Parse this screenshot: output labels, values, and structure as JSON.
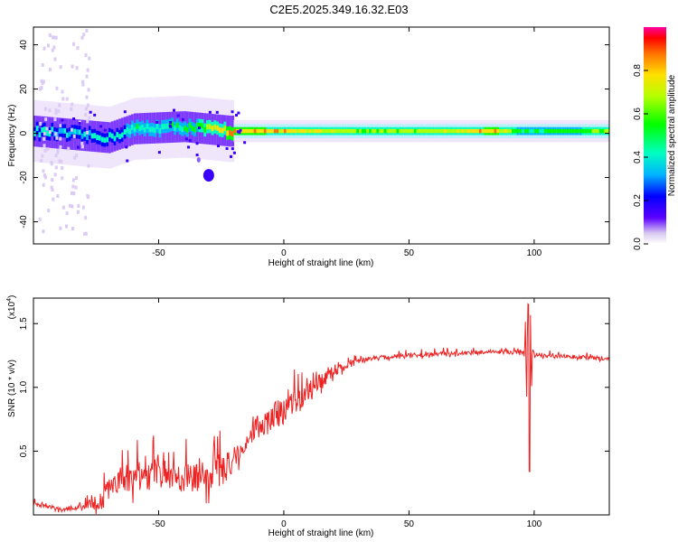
{
  "title": "C2E5.2025.349.16.32.E03",
  "colors": {
    "signal": "#ee2222",
    "frame": "#000000"
  },
  "chart_data": [
    {
      "type": "heatmap",
      "xlabel": "Height of straight line (km)",
      "ylabel": "Frequency (Hz)",
      "xlim": [
        -100,
        130
      ],
      "ylim": [
        -50,
        48
      ],
      "xticks": [
        -50,
        0,
        50,
        100
      ],
      "xtick_labels": [
        "-50",
        "0",
        "50",
        "100"
      ],
      "yticks": [
        -40,
        -20,
        0,
        20,
        40
      ],
      "ytick_labels": [
        "-40",
        "-20",
        "0",
        "20",
        "40"
      ],
      "colorbar": {
        "label": "Normalized spectral amplitude",
        "range": [
          0.0,
          1.0
        ],
        "ticks": [
          0.0,
          0.2,
          0.4,
          0.6,
          0.8
        ],
        "tick_labels": [
          "0.0",
          "0.2",
          "0.4",
          "0.6",
          "0.8"
        ]
      },
      "band_center_hz": [
        [
          -100,
          1
        ],
        [
          -80,
          -1
        ],
        [
          -70,
          -2
        ],
        [
          -60,
          2
        ],
        [
          -40,
          3
        ],
        [
          -22,
          1
        ],
        [
          0,
          1
        ],
        [
          10,
          1
        ],
        [
          30,
          1
        ],
        [
          60,
          1
        ],
        [
          90,
          1
        ],
        [
          130,
          1
        ]
      ],
      "band_amplitude": [
        [
          -100,
          0.5
        ],
        [
          -80,
          0.45
        ],
        [
          -60,
          0.55
        ],
        [
          -40,
          0.6
        ],
        [
          -22,
          0.95
        ],
        [
          0,
          0.9
        ],
        [
          30,
          0.75
        ],
        [
          60,
          0.8
        ],
        [
          85,
          0.95
        ],
        [
          95,
          0.6
        ],
        [
          130,
          0.75
        ]
      ]
    },
    {
      "type": "line",
      "xlabel": "Height of straight line (km)",
      "ylabel": "SNR (10 * v/v)",
      "y_scale_label": "(x10",
      "y_scale_exp": "4",
      "xlim": [
        -100,
        130
      ],
      "ylim": [
        0,
        17000
      ],
      "xticks": [
        -50,
        0,
        50,
        100
      ],
      "xtick_labels": [
        "-50",
        "0",
        "50",
        "100"
      ],
      "yticks": [
        5000,
        10000,
        15000
      ],
      "ytick_labels": [
        "0.5",
        "1.0",
        "1.5"
      ],
      "series": [
        {
          "name": "SNR",
          "envelope": [
            [
              -100,
              800
            ],
            [
              -95,
              700
            ],
            [
              -90,
              300
            ],
            [
              -85,
              300
            ],
            [
              -80,
              600
            ],
            [
              -72,
              800
            ],
            [
              -70,
              2200
            ],
            [
              -60,
              2500
            ],
            [
              -50,
              2800
            ],
            [
              -40,
              2500
            ],
            [
              -30,
              2500
            ],
            [
              -25,
              2800
            ],
            [
              -20,
              4000
            ],
            [
              -15,
              5500
            ],
            [
              -10,
              6500
            ],
            [
              -5,
              7200
            ],
            [
              0,
              7800
            ],
            [
              5,
              8400
            ],
            [
              10,
              9200
            ],
            [
              15,
              10200
            ],
            [
              20,
              11000
            ],
            [
              25,
              11600
            ],
            [
              30,
              12000
            ],
            [
              40,
              12300
            ],
            [
              50,
              12400
            ],
            [
              60,
              12500
            ],
            [
              70,
              12600
            ],
            [
              80,
              12700
            ],
            [
              90,
              12700
            ],
            [
              100,
              12500
            ],
            [
              110,
              12400
            ],
            [
              120,
              12300
            ],
            [
              130,
              12200
            ]
          ],
          "noise": [
            [
              -100,
              400
            ],
            [
              -80,
              400
            ],
            [
              -72,
              1500
            ],
            [
              -60,
              2500
            ],
            [
              -40,
              2300
            ],
            [
              -25,
              2500
            ],
            [
              -20,
              1800
            ],
            [
              -10,
              2000
            ],
            [
              0,
              2200
            ],
            [
              10,
              1800
            ],
            [
              20,
              800
            ],
            [
              30,
              400
            ],
            [
              130,
              300
            ]
          ]
        }
      ],
      "annotations": [
        {
          "x": 97.5,
          "y": 16500,
          "text": ""
        },
        {
          "x": 98,
          "y": 3400,
          "text": ""
        }
      ]
    }
  ]
}
